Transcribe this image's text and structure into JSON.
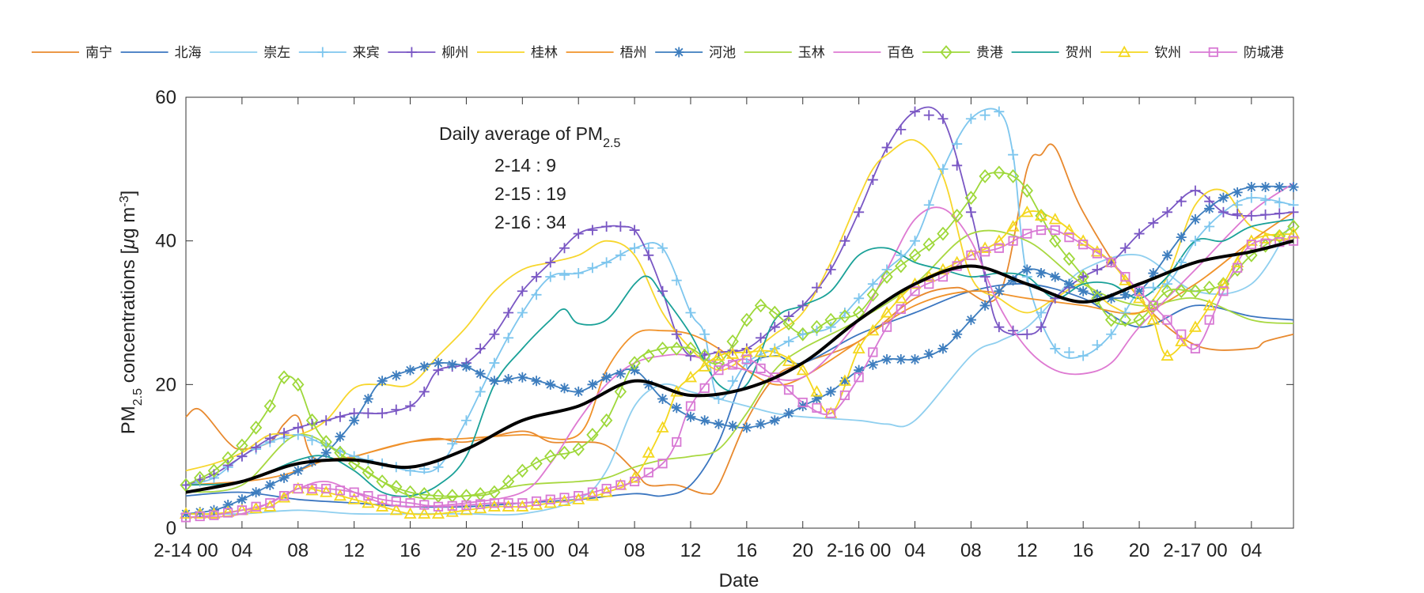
{
  "chart_data": {
    "type": "line",
    "xlabel": "Date",
    "ylabel_parts": {
      "pre": "PM",
      "sub": "2.5",
      "mid": " concentrations [",
      "mu": "μ",
      "g": "g m",
      "sup": "-3",
      "post": "]"
    },
    "ylim": [
      0,
      60
    ],
    "yticks": [
      0,
      20,
      40,
      60
    ],
    "xlim": [
      0,
      79
    ],
    "xtick_positions": [
      0,
      4,
      8,
      12,
      16,
      20,
      24,
      28,
      32,
      36,
      40,
      44,
      48,
      52,
      56,
      60,
      64,
      68,
      72,
      76
    ],
    "xtick_labels": [
      "2-14 00",
      "04",
      "08",
      "12",
      "16",
      "20",
      "2-15 00",
      "04",
      "08",
      "12",
      "16",
      "20",
      "2-16 00",
      "04",
      "08",
      "12",
      "16",
      "20",
      "2-17 00",
      "04"
    ],
    "annotation": {
      "title_pre": "Daily average of PM",
      "title_sub": "2.5",
      "lines": [
        "2-14 : 9",
        "2-15 : 19",
        "2-16 : 34"
      ]
    },
    "average_series": {
      "name": "average",
      "color": "#000000",
      "x": [
        0,
        4,
        8,
        12,
        16,
        20,
        24,
        28,
        32,
        36,
        40,
        44,
        48,
        52,
        56,
        60,
        64,
        68,
        72,
        76,
        79
      ],
      "values": [
        5,
        6.5,
        9,
        9.5,
        8.5,
        11,
        15,
        17,
        20.5,
        18.5,
        19.5,
        23,
        29,
        34,
        36.5,
        34,
        31.5,
        34,
        37,
        38.5,
        40
      ]
    },
    "series": [
      {
        "name": "南宁",
        "color": "#E8892E",
        "marker": "none",
        "x": [
          0,
          1,
          3,
          4,
          6,
          7,
          8,
          9,
          11,
          13,
          16,
          18,
          20,
          24,
          26,
          28,
          30,
          32,
          33,
          35,
          37,
          38,
          40,
          42,
          44,
          48,
          52,
          55,
          58,
          60,
          61,
          62,
          64,
          68,
          72,
          76,
          77,
          79
        ],
        "values": [
          15.5,
          16.5,
          12,
          11,
          12,
          14.5,
          15.5,
          10,
          9.5,
          10.5,
          12,
          12.5,
          12,
          13.5,
          12,
          12,
          11.5,
          8,
          6,
          6,
          4.8,
          6,
          15,
          21,
          23,
          26,
          32,
          33.5,
          32.5,
          50,
          52,
          53,
          44,
          32,
          25.5,
          25,
          26,
          27
        ]
      },
      {
        "name": "北海",
        "color": "#3B76C0",
        "marker": "none",
        "x": [
          0,
          4,
          8,
          12,
          16,
          20,
          24,
          28,
          32,
          34,
          36,
          38,
          40,
          42,
          44,
          48,
          52,
          56,
          60,
          64,
          68,
          72,
          76,
          79
        ],
        "values": [
          4.5,
          5,
          4,
          3.5,
          3,
          3,
          3.5,
          4,
          4.8,
          4.5,
          6,
          12,
          22,
          24,
          23,
          27,
          30,
          33,
          34,
          32,
          28,
          31,
          29.5,
          29
        ]
      },
      {
        "name": "崇左",
        "color": "#8FCFEF",
        "marker": "none",
        "x": [
          0,
          4,
          8,
          12,
          16,
          20,
          24,
          28,
          30,
          32,
          34,
          36,
          38,
          40,
          42,
          44,
          48,
          50,
          52,
          56,
          58,
          60,
          62,
          64,
          68,
          72,
          76,
          79
        ],
        "values": [
          2,
          2,
          2.5,
          2,
          2,
          2,
          2,
          4,
          8,
          17,
          20,
          19,
          18,
          17,
          16,
          15.5,
          15,
          14.5,
          15,
          24,
          26,
          28,
          32,
          36,
          38,
          33,
          34,
          43
        ]
      },
      {
        "name": "来宾",
        "color": "#7EC6EE",
        "marker": "plus",
        "x": [
          0,
          2,
          4,
          6,
          8,
          10,
          12,
          14,
          16,
          18,
          20,
          22,
          24,
          26,
          28,
          30,
          32,
          34,
          36,
          37,
          38,
          40,
          42,
          44,
          46,
          48,
          50,
          52,
          54,
          56,
          58,
          59,
          60,
          62,
          64,
          66,
          68,
          70,
          72,
          74,
          76,
          79
        ],
        "values": [
          6,
          7,
          10,
          12,
          13,
          11.5,
          10,
          9,
          8,
          8.5,
          15,
          23,
          30,
          35,
          35.5,
          37,
          39,
          39,
          30,
          27,
          18,
          23,
          25,
          27,
          28,
          32,
          36,
          40,
          50,
          57,
          58,
          52,
          35,
          25,
          24,
          27,
          33,
          34,
          40,
          44,
          46,
          45
        ]
      },
      {
        "name": "柳州",
        "color": "#7A57C4",
        "marker": "plus",
        "x": [
          0,
          2,
          4,
          6,
          8,
          10,
          12,
          14,
          16,
          17,
          18,
          20,
          22,
          24,
          26,
          28,
          30,
          31,
          32,
          33,
          34,
          35,
          36,
          38,
          40,
          42,
          44,
          46,
          48,
          50,
          52,
          54,
          56,
          57,
          58,
          60,
          61,
          62,
          64,
          66,
          68,
          70,
          72,
          74,
          76,
          79
        ],
        "values": [
          6,
          7.5,
          10,
          12.5,
          14,
          15,
          16,
          16,
          17,
          19,
          22,
          23,
          27,
          33,
          37,
          41,
          42,
          42,
          41.5,
          38,
          33,
          27,
          24,
          24.5,
          25,
          28,
          31,
          36,
          44,
          53,
          58,
          57,
          44,
          35,
          28,
          27,
          28,
          32,
          35,
          37,
          41,
          44,
          47,
          44,
          43.5,
          44
        ]
      },
      {
        "name": "桂林",
        "color": "#F7D62C",
        "marker": "none",
        "x": [
          0,
          2,
          4,
          6,
          8,
          10,
          12,
          14,
          16,
          18,
          20,
          22,
          24,
          26,
          28,
          30,
          32,
          34,
          36,
          38,
          40,
          42,
          44,
          46,
          48,
          49,
          50,
          52,
          54,
          56,
          58,
          60,
          62,
          64,
          66,
          68,
          70,
          72,
          74,
          76,
          79
        ],
        "values": [
          8,
          9,
          10.5,
          13,
          13,
          15,
          19.5,
          20,
          20,
          24,
          28,
          33,
          36,
          37,
          38,
          40,
          38,
          30,
          25,
          22,
          24,
          27,
          30,
          37,
          46,
          50,
          52,
          54,
          49,
          35,
          32,
          30,
          32,
          34,
          31,
          30,
          35,
          45,
          47,
          42,
          40
        ]
      },
      {
        "name": "梧州",
        "color": "#F0922A",
        "marker": "none",
        "x": [
          0,
          4,
          6,
          8,
          10,
          12,
          16,
          20,
          24,
          28,
          30,
          32,
          34,
          36,
          38,
          40,
          42,
          44,
          48,
          52,
          56,
          60,
          64,
          68,
          72,
          76,
          79
        ],
        "values": [
          6,
          6.5,
          7,
          8,
          9.5,
          10,
          12,
          12.5,
          13,
          13,
          22,
          27,
          27.5,
          27,
          25,
          22,
          20,
          21,
          26,
          31,
          33,
          32,
          31,
          30,
          34,
          40,
          44
        ]
      },
      {
        "name": "河池",
        "color": "#3D7DBE",
        "marker": "star",
        "x": [
          0,
          2,
          4,
          6,
          8,
          10,
          12,
          13,
          14,
          16,
          18,
          20,
          22,
          24,
          26,
          28,
          30,
          32,
          34,
          36,
          38,
          40,
          42,
          44,
          46,
          48,
          50,
          52,
          54,
          56,
          58,
          60,
          62,
          64,
          66,
          68,
          70,
          72,
          74,
          76,
          79
        ],
        "values": [
          2,
          2.5,
          4,
          6,
          8,
          10.5,
          15,
          18,
          20.5,
          22,
          23,
          22.5,
          20.5,
          21,
          20,
          19,
          21,
          22,
          18,
          15.5,
          14.5,
          14,
          15,
          17,
          19,
          22,
          23.5,
          23.5,
          25,
          29,
          33,
          36,
          35,
          33,
          32,
          33,
          38,
          43,
          46,
          47.5,
          47.5
        ]
      },
      {
        "name": "玉林",
        "color": "#A8D840",
        "marker": "none",
        "x": [
          0,
          4,
          8,
          12,
          16,
          20,
          24,
          28,
          30,
          32,
          34,
          36,
          38,
          40,
          42,
          44,
          48,
          52,
          56,
          60,
          64,
          68,
          72,
          76,
          79
        ],
        "values": [
          5,
          6,
          13,
          9,
          4.5,
          4.5,
          6,
          6.5,
          7,
          8.5,
          9.5,
          10,
          11,
          16,
          22,
          25,
          29,
          34,
          41,
          40,
          34,
          31,
          32,
          29,
          28.5
        ]
      },
      {
        "name": "百色",
        "color": "#DE7AD2",
        "marker": "none",
        "x": [
          0,
          4,
          8,
          10,
          12,
          14,
          16,
          20,
          24,
          26,
          28,
          30,
          32,
          34,
          36,
          40,
          44,
          48,
          50,
          52,
          54,
          56,
          58,
          60,
          62,
          64,
          66,
          68,
          72,
          76,
          79
        ],
        "values": [
          1.5,
          2,
          5.5,
          6.5,
          5,
          3.5,
          3,
          3.5,
          5,
          9,
          15,
          20,
          23,
          24,
          24,
          22,
          21,
          29,
          36,
          43,
          44.5,
          40,
          31,
          25,
          22,
          21.5,
          23,
          28,
          36,
          44,
          48
        ]
      },
      {
        "name": "贵港",
        "color": "#9ED83A",
        "marker": "diamond",
        "x": [
          0,
          2,
          4,
          5,
          6,
          7,
          8,
          9,
          10,
          12,
          14,
          16,
          18,
          20,
          22,
          24,
          26,
          28,
          30,
          32,
          34,
          36,
          38,
          40,
          41,
          42,
          44,
          46,
          48,
          50,
          52,
          54,
          56,
          57,
          58,
          59,
          60,
          62,
          64,
          66,
          68,
          70,
          72,
          74,
          76,
          79
        ],
        "values": [
          6,
          8,
          11.5,
          14,
          17,
          21,
          20,
          15,
          12,
          9,
          6.5,
          5,
          4.5,
          4.5,
          5,
          8,
          10,
          11,
          15,
          23,
          25,
          25,
          23,
          29,
          31,
          30,
          27,
          29,
          30,
          35,
          38,
          41,
          46,
          49,
          49.5,
          49,
          47,
          40,
          35,
          29,
          29,
          33,
          33,
          34,
          38,
          42
        ]
      },
      {
        "name": "贺州",
        "color": "#1AA198",
        "marker": "none",
        "x": [
          0,
          4,
          8,
          10,
          12,
          14,
          16,
          18,
          20,
          22,
          24,
          26,
          27,
          28,
          30,
          32,
          33,
          34,
          36,
          38,
          40,
          42,
          44,
          46,
          48,
          50,
          52,
          54,
          56,
          58,
          60,
          62,
          64,
          66,
          68,
          70,
          72,
          74,
          76,
          79
        ],
        "values": [
          6,
          6.5,
          9.5,
          10,
          8,
          5,
          4.5,
          6,
          10,
          20,
          25,
          29,
          30.5,
          28.5,
          29,
          34,
          35,
          32.5,
          27,
          20,
          20,
          29,
          31,
          33,
          38,
          39,
          37,
          36,
          35,
          35.5,
          35,
          32,
          34,
          34,
          32,
          35,
          40,
          40,
          42,
          43
        ]
      },
      {
        "name": "钦州",
        "color": "#F4D71E",
        "marker": "triangle",
        "x": [
          0,
          2,
          4,
          6,
          8,
          10,
          12,
          14,
          16,
          18,
          20,
          22,
          24,
          26,
          28,
          30,
          32,
          34,
          35,
          36,
          38,
          40,
          42,
          44,
          46,
          48,
          50,
          52,
          54,
          56,
          58,
          60,
          62,
          64,
          66,
          68,
          69,
          70,
          72,
          74,
          76,
          79
        ],
        "values": [
          2,
          2,
          2.5,
          3,
          5.5,
          5,
          4,
          3,
          2,
          2,
          2.5,
          3,
          3,
          3.5,
          4,
          5,
          7,
          14,
          19,
          21,
          24,
          24.5,
          24.5,
          22,
          16,
          25,
          30,
          34,
          36,
          38,
          40,
          44,
          43,
          40,
          37,
          32,
          29,
          24,
          28,
          34,
          40,
          41
        ]
      },
      {
        "name": "防城港",
        "color": "#D879D4",
        "marker": "square",
        "x": [
          0,
          2,
          4,
          6,
          8,
          10,
          12,
          14,
          16,
          18,
          20,
          22,
          24,
          26,
          28,
          30,
          32,
          34,
          35,
          36,
          38,
          40,
          42,
          44,
          46,
          48,
          50,
          52,
          54,
          56,
          58,
          60,
          61,
          62,
          64,
          66,
          68,
          70,
          72,
          74,
          76,
          79
        ],
        "values": [
          1.5,
          1.8,
          2.5,
          3.5,
          5.5,
          5.5,
          5,
          4,
          3.5,
          3,
          3.2,
          3.5,
          3.5,
          4,
          4.5,
          5.5,
          6.5,
          9,
          12,
          17,
          22,
          23.5,
          21,
          17.5,
          16,
          21,
          28,
          33,
          35,
          38,
          39,
          41,
          41.5,
          41.5,
          39.5,
          37,
          33,
          29,
          25,
          33,
          39.5,
          40
        ]
      }
    ]
  }
}
